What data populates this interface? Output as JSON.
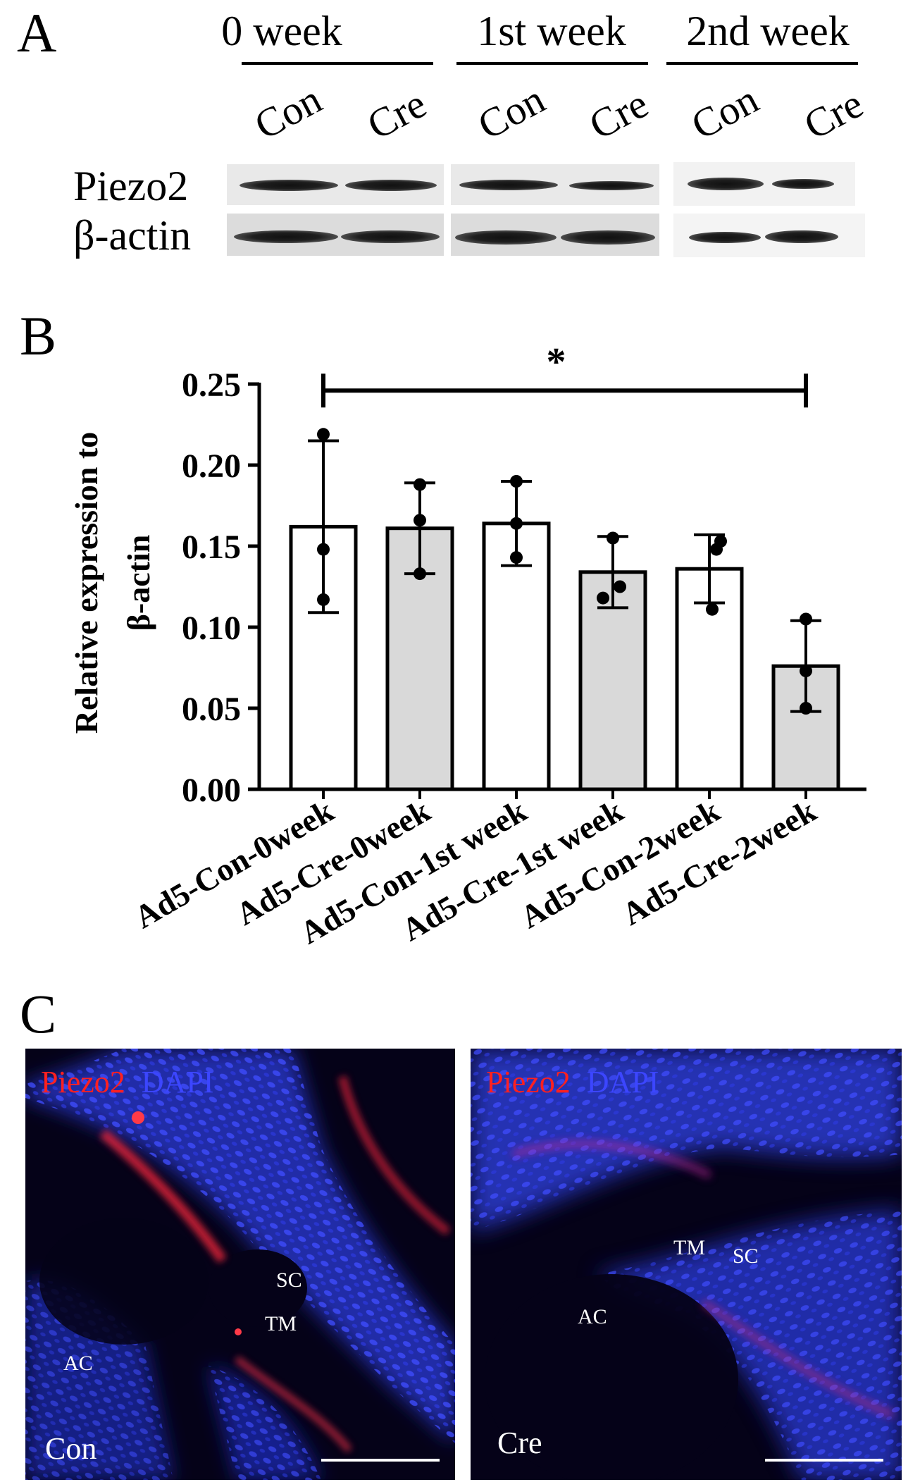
{
  "panels": {
    "a": "A",
    "b": "B",
    "c": "C"
  },
  "blot": {
    "groups": [
      "0 week",
      "1st week",
      "2nd week"
    ],
    "lanes": [
      "Con",
      "Cre",
      "Con",
      "Cre",
      "Con",
      "Cre"
    ],
    "rows": [
      "Piezo2",
      "β-actin"
    ]
  },
  "chart_data": {
    "type": "bar",
    "categories": [
      "Ad5-Con-0week",
      "Ad5-Cre-0week",
      "Ad5-Con-1st week",
      "Ad5-Cre-1st week",
      "Ad5-Con-2week",
      "Ad5-Cre-2week"
    ],
    "values": [
      0.162,
      0.161,
      0.164,
      0.134,
      0.136,
      0.076
    ],
    "error": [
      0.053,
      0.028,
      0.026,
      0.022,
      0.021,
      0.028
    ],
    "points": [
      [
        0.219,
        0.148,
        0.117
      ],
      [
        0.188,
        0.166,
        0.133
      ],
      [
        0.19,
        0.164,
        0.143
      ],
      [
        0.155,
        0.125,
        0.118
      ],
      [
        0.153,
        0.148,
        0.111
      ],
      [
        0.105,
        0.073,
        0.05
      ]
    ],
    "bar_colors": [
      "#ffffff",
      "#d9d9d9",
      "#ffffff",
      "#d9d9d9",
      "#ffffff",
      "#d9d9d9"
    ],
    "ylabel_line1": "Relative expression to",
    "ylabel_line2": "β-actin",
    "ylim": [
      0,
      0.25
    ],
    "yticks": [
      "0.00",
      "0.05",
      "0.10",
      "0.15",
      "0.20",
      "0.25"
    ],
    "significance": {
      "from": 0,
      "to": 5,
      "label": "*"
    },
    "grid": false
  },
  "microscopy": {
    "left": {
      "stain_red": "Piezo2",
      "stain_blue": "DAPI",
      "sc": "SC",
      "tm": "TM",
      "ac": "AC",
      "condition": "Con"
    },
    "right": {
      "stain_red": "Piezo2",
      "stain_blue": "DAPI",
      "tm": "TM",
      "sc": "SC",
      "ac": "AC",
      "condition": "Cre"
    },
    "colors": {
      "red": "#ff2020",
      "blue": "#3c46ff",
      "background": "#050218"
    }
  }
}
